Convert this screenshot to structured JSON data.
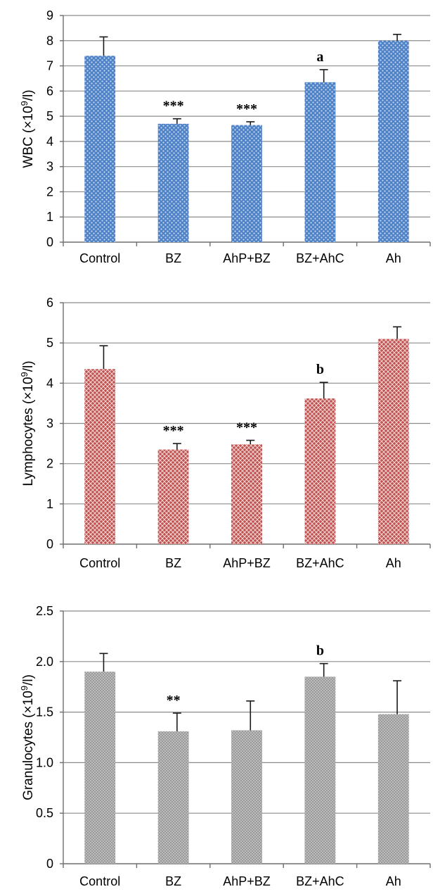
{
  "chart_data": [
    {
      "type": "bar",
      "categories": [
        "Control",
        "BZ",
        "AhP+BZ",
        "BZ+AhC",
        "Ah"
      ],
      "values": [
        7.4,
        4.7,
        4.65,
        6.35,
        8.0
      ],
      "errors": [
        0.75,
        0.2,
        0.13,
        0.5,
        0.25
      ],
      "annotations": [
        "",
        "***",
        "***",
        "a",
        ""
      ],
      "ylabel_main": "WBC (×10",
      "ylabel_sup": "9",
      "ylabel_tail": "/l)",
      "ylim": [
        0,
        9
      ],
      "yticks": [
        "0",
        "1",
        "2",
        "3",
        "4",
        "5",
        "6",
        "7",
        "8",
        "9"
      ],
      "grid": true,
      "color": "#4f81c7",
      "pattern": "dots"
    },
    {
      "type": "bar",
      "categories": [
        "Control",
        "BZ",
        "AhP+BZ",
        "BZ+AhC",
        "Ah"
      ],
      "values": [
        4.35,
        2.35,
        2.48,
        3.62,
        5.1
      ],
      "errors": [
        0.58,
        0.15,
        0.1,
        0.4,
        0.3
      ],
      "annotations": [
        "",
        "***",
        "***",
        "b",
        ""
      ],
      "ylabel_main": "Lymphocytes (×10",
      "ylabel_sup": "9",
      "ylabel_tail": "/l)",
      "ylim": [
        0,
        6
      ],
      "yticks": [
        "0",
        "1",
        "2",
        "3",
        "4",
        "5",
        "6"
      ],
      "grid": true,
      "color": "#c0504d",
      "pattern": "crosshatch"
    },
    {
      "type": "bar",
      "categories": [
        "Control",
        "BZ",
        "AhP+BZ",
        "BZ+AhC",
        "Ah"
      ],
      "values": [
        1.9,
        1.31,
        1.32,
        1.85,
        1.48
      ],
      "errors": [
        0.18,
        0.18,
        0.29,
        0.13,
        0.33
      ],
      "annotations": [
        "",
        "**",
        "",
        "b",
        ""
      ],
      "ylabel_main": "Granulocytes (×10",
      "ylabel_sup": "9",
      "ylabel_tail": "/l)",
      "ylim": [
        0,
        2.5
      ],
      "yticks": [
        "0",
        "0.5",
        "1.0",
        "1.5",
        "2.0",
        "2.5"
      ],
      "grid": true,
      "color": "#9a9a9a",
      "pattern": "fine-dots"
    }
  ]
}
